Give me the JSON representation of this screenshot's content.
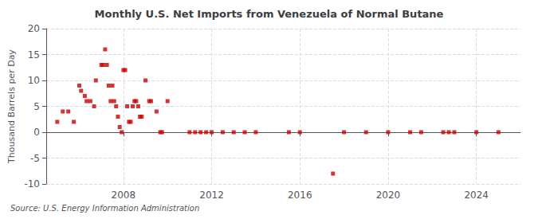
{
  "chart_data": {
    "type": "scatter",
    "title": "Monthly U.S. Net Imports from Venezuela of Normal Butane",
    "ylabel": "Thousand Barrels per Day",
    "source": "Source: U.S. Energy Information Administration",
    "color": "#cc0000",
    "marker": "square",
    "grid": true,
    "xlim": [
      2004.5,
      2026.0
    ],
    "xticks": [
      2008,
      2012,
      2016,
      2020,
      2024
    ],
    "ylim": [
      -10,
      20
    ],
    "yticks": [
      -10,
      -5,
      0,
      5,
      10,
      15,
      20
    ],
    "x": [
      2005.0,
      2005.25,
      2005.5,
      2005.75,
      2006.0,
      2006.08,
      2006.25,
      2006.33,
      2006.5,
      2006.67,
      2006.75,
      2007.0,
      2007.08,
      2007.17,
      2007.25,
      2007.33,
      2007.42,
      2007.5,
      2007.58,
      2007.67,
      2007.75,
      2007.83,
      2007.92,
      2008.0,
      2008.08,
      2008.17,
      2008.25,
      2008.33,
      2008.42,
      2008.5,
      2008.58,
      2008.67,
      2008.75,
      2008.83,
      2009.0,
      2009.17,
      2009.25,
      2009.5,
      2009.67,
      2009.75,
      2010.0,
      2011.0,
      2011.25,
      2011.5,
      2011.75,
      2012.0,
      2012.5,
      2013.0,
      2013.5,
      2014.0,
      2015.5,
      2016.0,
      2017.5,
      2018.0,
      2019.0,
      2020.0,
      2021.0,
      2021.5,
      2022.5,
      2022.75,
      2023.0,
      2024.0,
      2025.0
    ],
    "values": [
      2,
      4,
      4,
      2,
      9,
      8,
      7,
      6,
      6,
      5,
      10,
      13,
      13,
      16,
      13,
      9,
      6,
      9,
      6,
      5,
      3,
      1,
      0,
      12,
      12,
      5,
      2,
      2,
      5,
      6,
      6,
      5,
      3,
      3,
      10,
      6,
      6,
      4,
      0,
      0,
      6,
      0,
      0,
      0,
      0,
      0,
      0,
      0,
      0,
      0,
      0,
      0,
      -8,
      0,
      0,
      0,
      0,
      0,
      0,
      0,
      0,
      0,
      0
    ]
  }
}
